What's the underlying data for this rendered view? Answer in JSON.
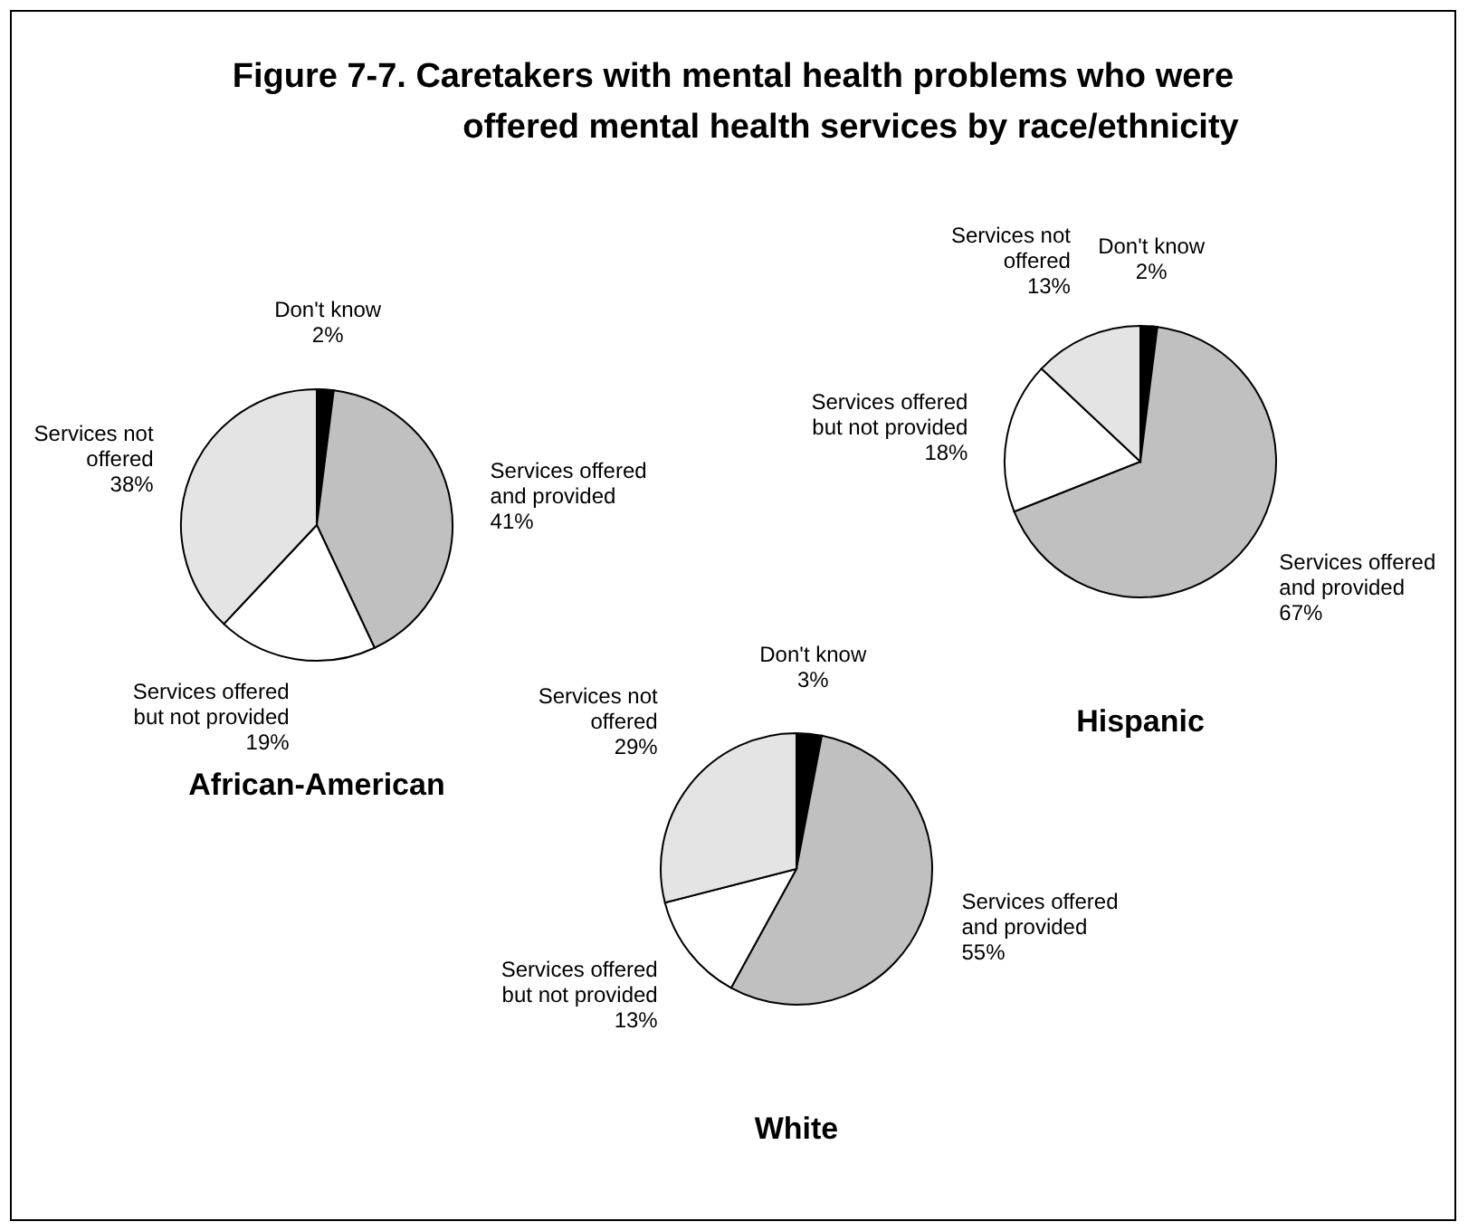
{
  "chart_data": [
    {
      "type": "pie",
      "title": "Figure 7-7.   Caretakers with mental health problems who were offered mental health services by race/ethnicity",
      "xlabel": "African-American",
      "categories": [
        "Don't know",
        "Services offered and provided",
        "Services offered but not provided",
        "Services not offered"
      ],
      "values": [
        2,
        41,
        19,
        38
      ],
      "value_labels": [
        "2%",
        "41%",
        "19%",
        "38%"
      ],
      "colors": [
        "#000000",
        "#c0c0c0",
        "#ffffff",
        "#e4e4e4"
      ]
    },
    {
      "type": "pie",
      "xlabel": "Hispanic",
      "categories": [
        "Don't know",
        "Services offered and provided",
        "Services offered but not provided",
        "Services not offered"
      ],
      "values": [
        2,
        67,
        18,
        13
      ],
      "value_labels": [
        "2%",
        "67%",
        "18%",
        "13%"
      ],
      "colors": [
        "#000000",
        "#c0c0c0",
        "#ffffff",
        "#e4e4e4"
      ]
    },
    {
      "type": "pie",
      "xlabel": "White",
      "categories": [
        "Don't know",
        "Services offered and provided",
        "Services offered but not provided",
        "Services not offered"
      ],
      "values": [
        3,
        55,
        13,
        29
      ],
      "value_labels": [
        "3%",
        "55%",
        "13%",
        "29%"
      ],
      "colors": [
        "#000000",
        "#c0c0c0",
        "#ffffff",
        "#e4e4e4"
      ]
    }
  ]
}
